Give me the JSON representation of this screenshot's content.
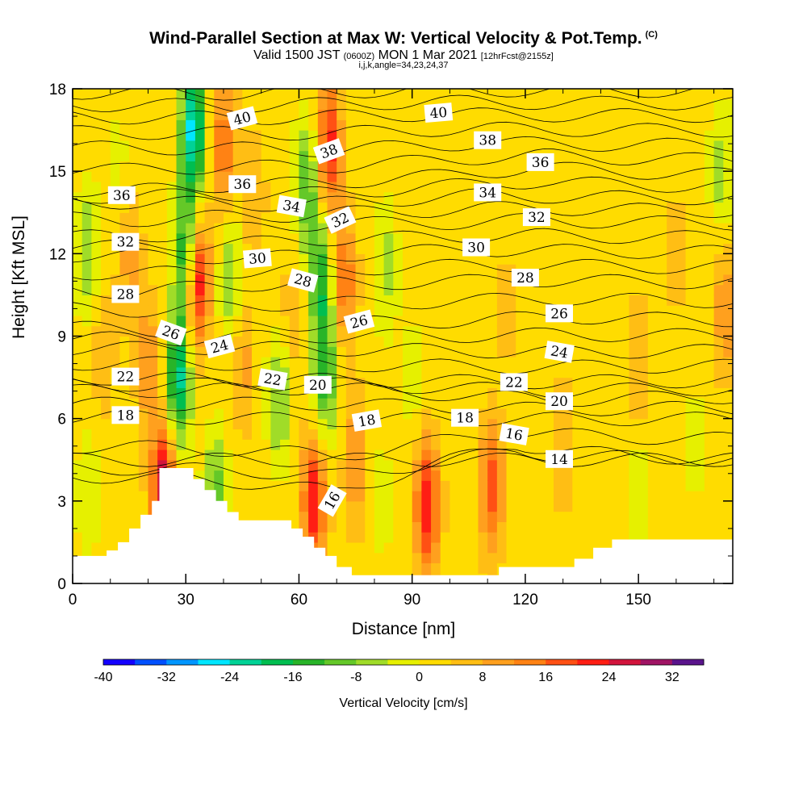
{
  "header": {
    "title": "Wind-Parallel Section at Max W: Vertical Velocity & Pot.Temp.",
    "copyright": "(C)",
    "valid_prefix": "Valid 1500 JST",
    "valid_utc": "(0600Z)",
    "valid_date": "MON 1 Mar 2021",
    "forecast": "[12hrFcst@2155z]",
    "section_params": "i,j,k,angle=34,23,24,37"
  },
  "chart_data": {
    "type": "heatmap",
    "title": "Wind-Parallel Section at Max W: Vertical Velocity & Pot.Temp.",
    "xlabel": "Distance [nm]",
    "ylabel": "Height [Kft MSL]",
    "xlim": [
      0,
      175
    ],
    "ylim": [
      0,
      18
    ],
    "x_ticks": [
      0,
      30,
      60,
      90,
      120,
      150
    ],
    "y_ticks": [
      0,
      3,
      6,
      9,
      12,
      15,
      18
    ],
    "colorbar": {
      "label": "Vertical Velocity [cm/s]",
      "range": [
        -40,
        36
      ],
      "step": 4,
      "tick_values": [
        -40,
        -32,
        -24,
        -16,
        -8,
        0,
        8,
        16,
        24,
        32
      ],
      "colors": [
        "#1400ff",
        "#0050ff",
        "#0096ff",
        "#00e6ff",
        "#00d296",
        "#00be50",
        "#28b428",
        "#64c828",
        "#a0dc28",
        "#e6f000",
        "#ffdc00",
        "#ffbe14",
        "#ffa01e",
        "#ff8214",
        "#ff5014",
        "#ff1e14",
        "#d2143c",
        "#a01464",
        "#5a148c"
      ]
    },
    "w_features": [
      {
        "x": 33,
        "z": 11,
        "w": 24
      },
      {
        "x": 32,
        "z": 16.5,
        "w": -28
      },
      {
        "x": 28,
        "z": 7.5,
        "w": -24
      },
      {
        "x": 24,
        "z": 3.5,
        "w": 26
      },
      {
        "x": 38,
        "z": 3,
        "w": -14
      },
      {
        "x": 40,
        "z": 16,
        "w": 14
      },
      {
        "x": 42,
        "z": 11,
        "w": -10
      },
      {
        "x": 45,
        "z": 8,
        "w": 8
      },
      {
        "x": 55,
        "z": 6.8,
        "w": -12
      },
      {
        "x": 58,
        "z": 9.5,
        "w": 6
      },
      {
        "x": 62,
        "z": 14.5,
        "w": -14
      },
      {
        "x": 66,
        "z": 11,
        "w": -16
      },
      {
        "x": 68,
        "z": 16,
        "w": 20
      },
      {
        "x": 72,
        "z": 11,
        "w": 14
      },
      {
        "x": 67,
        "z": 7.5,
        "w": -16
      },
      {
        "x": 64,
        "z": 3,
        "w": 22
      },
      {
        "x": 75,
        "z": 4.5,
        "w": 10
      },
      {
        "x": 83,
        "z": 11.5,
        "w": -8
      },
      {
        "x": 90,
        "z": 7.5,
        "w": -4
      },
      {
        "x": 82,
        "z": 3,
        "w": -4
      },
      {
        "x": 94,
        "z": 2.8,
        "w": 22
      },
      {
        "x": 111,
        "z": 3.5,
        "w": 16
      },
      {
        "x": 4,
        "z": 3.2,
        "w": -6
      },
      {
        "x": 4,
        "z": 12,
        "w": -10
      },
      {
        "x": 12,
        "z": 15,
        "w": -4
      },
      {
        "x": 15,
        "z": 12,
        "w": 8
      },
      {
        "x": 30,
        "z": 12,
        "w": -20
      },
      {
        "x": 48,
        "z": 14,
        "w": 6
      },
      {
        "x": 115,
        "z": 10,
        "w": 4
      },
      {
        "x": 150,
        "z": 8,
        "w": 6
      },
      {
        "x": 150,
        "z": 3,
        "w": -6
      },
      {
        "x": 160,
        "z": 12,
        "w": 4
      },
      {
        "x": 172,
        "z": 15,
        "w": -8
      },
      {
        "x": 173,
        "z": 10,
        "w": 10
      },
      {
        "x": 165,
        "z": 5,
        "w": -4
      },
      {
        "x": 130,
        "z": 5,
        "w": 6
      },
      {
        "x": 20,
        "z": 8,
        "w": 10
      },
      {
        "x": 8,
        "z": 8.5,
        "w": 6
      }
    ],
    "theta_contours": {
      "interval_K": 1,
      "labels": [
        {
          "text": "40",
          "x": 45,
          "z": 16.9,
          "angle": -15
        },
        {
          "text": "40",
          "x": 97,
          "z": 17.1,
          "angle": -5
        },
        {
          "text": "38",
          "x": 68,
          "z": 15.7,
          "angle": -20
        },
        {
          "text": "38",
          "x": 110,
          "z": 16.1,
          "angle": 0
        },
        {
          "text": "36",
          "x": 13,
          "z": 14.1,
          "angle": 0
        },
        {
          "text": "36",
          "x": 45,
          "z": 14.5,
          "angle": 0
        },
        {
          "text": "36",
          "x": 124,
          "z": 15.3,
          "angle": 0
        },
        {
          "text": "34",
          "x": 58,
          "z": 13.7,
          "angle": 10
        },
        {
          "text": "34",
          "x": 110,
          "z": 14.2,
          "angle": 0
        },
        {
          "text": "32",
          "x": 14,
          "z": 12.4,
          "angle": 0
        },
        {
          "text": "32",
          "x": 71,
          "z": 13.2,
          "angle": -25
        },
        {
          "text": "32",
          "x": 123,
          "z": 13.3,
          "angle": 0
        },
        {
          "text": "30",
          "x": 49,
          "z": 11.8,
          "angle": -5
        },
        {
          "text": "30",
          "x": 107,
          "z": 12.2,
          "angle": 0
        },
        {
          "text": "28",
          "x": 14,
          "z": 10.5,
          "angle": 0
        },
        {
          "text": "28",
          "x": 61,
          "z": 11,
          "angle": 15
        },
        {
          "text": "28",
          "x": 120,
          "z": 11.1,
          "angle": 0
        },
        {
          "text": "26",
          "x": 26,
          "z": 9.1,
          "angle": 20
        },
        {
          "text": "26",
          "x": 76,
          "z": 9.5,
          "angle": -15
        },
        {
          "text": "26",
          "x": 129,
          "z": 9.8,
          "angle": 0
        },
        {
          "text": "24",
          "x": 39,
          "z": 8.6,
          "angle": -15
        },
        {
          "text": "24",
          "x": 129,
          "z": 8.4,
          "angle": 10
        },
        {
          "text": "22",
          "x": 14,
          "z": 7.5,
          "angle": 0
        },
        {
          "text": "22",
          "x": 53,
          "z": 7.4,
          "angle": 10
        },
        {
          "text": "22",
          "x": 117,
          "z": 7.3,
          "angle": 0
        },
        {
          "text": "20",
          "x": 65,
          "z": 7.2,
          "angle": 0
        },
        {
          "text": "20",
          "x": 129,
          "z": 6.6,
          "angle": 0
        },
        {
          "text": "18",
          "x": 14,
          "z": 6.1,
          "angle": 0
        },
        {
          "text": "18",
          "x": 78,
          "z": 5.9,
          "angle": -10
        },
        {
          "text": "18",
          "x": 104,
          "z": 6.0,
          "angle": 0
        },
        {
          "text": "16",
          "x": 69,
          "z": 3,
          "angle": -60
        },
        {
          "text": "16",
          "x": 117,
          "z": 5.4,
          "angle": 10
        },
        {
          "text": "14",
          "x": 129,
          "z": 4.5,
          "angle": 0
        }
      ]
    },
    "terrain_kft": [
      [
        0,
        1.0
      ],
      [
        9,
        1.0
      ],
      [
        9,
        1.2
      ],
      [
        12,
        1.2
      ],
      [
        12,
        1.5
      ],
      [
        15,
        1.5
      ],
      [
        15,
        2.0
      ],
      [
        18,
        2.0
      ],
      [
        18,
        2.5
      ],
      [
        21,
        2.5
      ],
      [
        21,
        3.0
      ],
      [
        23,
        3.0
      ],
      [
        23,
        4.2
      ],
      [
        32,
        4.2
      ],
      [
        32,
        3.8
      ],
      [
        35,
        3.8
      ],
      [
        35,
        3.4
      ],
      [
        38,
        3.4
      ],
      [
        38,
        3.0
      ],
      [
        41,
        3.0
      ],
      [
        41,
        2.6
      ],
      [
        44,
        2.6
      ],
      [
        44,
        2.3
      ],
      [
        58,
        2.3
      ],
      [
        58,
        2.0
      ],
      [
        61,
        2.0
      ],
      [
        61,
        1.7
      ],
      [
        64,
        1.7
      ],
      [
        64,
        1.3
      ],
      [
        67,
        1.3
      ],
      [
        67,
        1.0
      ],
      [
        70,
        1.0
      ],
      [
        70,
        0.6
      ],
      [
        74,
        0.6
      ],
      [
        74,
        0.3
      ],
      [
        113,
        0.3
      ],
      [
        113,
        0.6
      ],
      [
        133,
        0.6
      ],
      [
        133,
        0.9
      ],
      [
        138,
        0.9
      ],
      [
        138,
        1.3
      ],
      [
        143,
        1.3
      ],
      [
        143,
        1.6
      ],
      [
        175,
        1.6
      ]
    ]
  },
  "colorbar_label": "Vertical Velocity [cm/s]"
}
